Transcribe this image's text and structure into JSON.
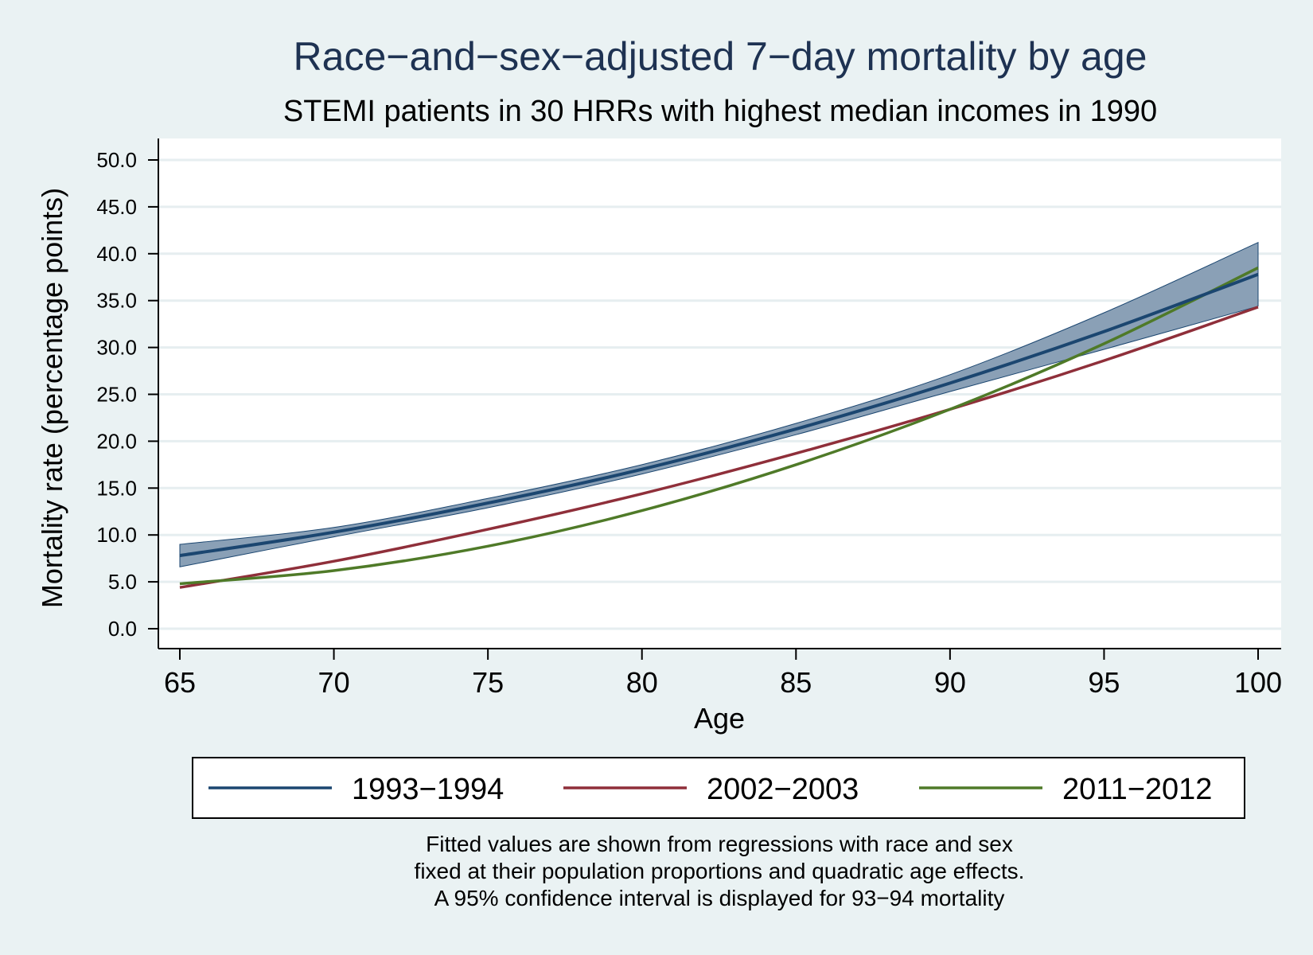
{
  "chart_data": {
    "type": "line",
    "title": "Race−and−sex−adjusted 7−day mortality by age",
    "subtitle": "STEMI patients in 30 HRRs with highest median incomes in 1990",
    "xlabel": "Age",
    "ylabel": "Mortality rate (percentage points)",
    "xlim": [
      65,
      100
    ],
    "ylim": [
      0,
      50
    ],
    "x_ticks": [
      "65",
      "70",
      "75",
      "80",
      "85",
      "90",
      "95",
      "100"
    ],
    "y_ticks": [
      "0.0",
      "5.0",
      "10.0",
      "15.0",
      "20.0",
      "25.0",
      "30.0",
      "35.0",
      "40.0",
      "45.0",
      "50.0"
    ],
    "grid": true,
    "legend_position": "bottom",
    "x": [
      65,
      70,
      75,
      80,
      85,
      90,
      95,
      100
    ],
    "series": [
      {
        "name": "1993−1994",
        "color": "#1b4670",
        "values": [
          7.8,
          10.3,
          13.4,
          17.0,
          21.3,
          26.2,
          31.7,
          37.8
        ],
        "ci_lower": [
          6.6,
          9.8,
          12.9,
          16.5,
          20.7,
          25.3,
          29.8,
          34.4
        ],
        "ci_upper": [
          9.0,
          10.8,
          13.9,
          17.5,
          21.9,
          27.1,
          33.7,
          41.2
        ]
      },
      {
        "name": "2002−2003",
        "color": "#8f2f3a",
        "values": [
          4.4,
          7.2,
          10.6,
          14.4,
          18.7,
          23.4,
          28.6,
          34.3
        ]
      },
      {
        "name": "2011−2012",
        "color": "#4f7a28",
        "values": [
          4.8,
          6.2,
          8.8,
          12.6,
          17.5,
          23.4,
          30.4,
          38.5
        ]
      }
    ],
    "ci_fill_color": "#8aa0b6",
    "notes": [
      "Fitted values are shown from regressions with race and sex",
      "fixed at their population proportions and quadratic age effects.",
      "A 95% confidence interval is displayed for 93−94 mortality"
    ]
  }
}
